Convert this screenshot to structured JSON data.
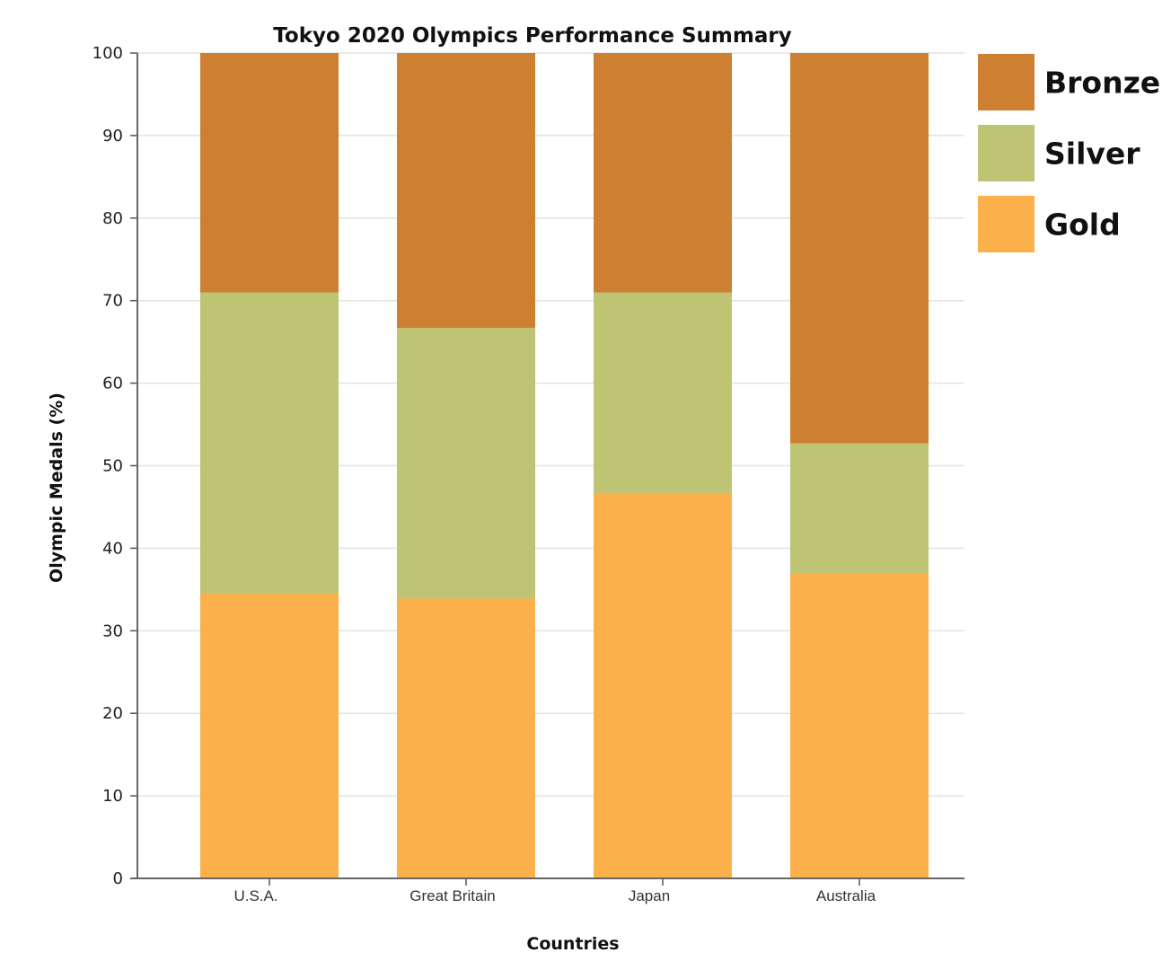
{
  "chart_data": {
    "type": "bar",
    "stacked": true,
    "title": "Tokyo 2020 Olympics Performance Summary",
    "xlabel": "Countries",
    "ylabel": "Olympic Medals (%)",
    "ylim": [
      0,
      100
    ],
    "yticks": [
      0,
      10,
      20,
      30,
      40,
      50,
      60,
      70,
      80,
      90,
      100
    ],
    "grid": true,
    "legend_position": "right",
    "categories": [
      "U.S.A.",
      "Great Britain",
      "Japan",
      "Australia"
    ],
    "series": [
      {
        "name": "Gold",
        "color": "#FBB04C",
        "values": [
          34.5,
          33.9,
          46.7,
          37.0
        ]
      },
      {
        "name": "Silver",
        "color": "#BEC473",
        "values": [
          36.5,
          32.8,
          24.3,
          15.7
        ]
      },
      {
        "name": "Bronze",
        "color": "#CD7F32",
        "values": [
          29.0,
          33.3,
          29.0,
          47.3
        ]
      }
    ],
    "legend_order": [
      "Bronze",
      "Silver",
      "Gold"
    ]
  }
}
